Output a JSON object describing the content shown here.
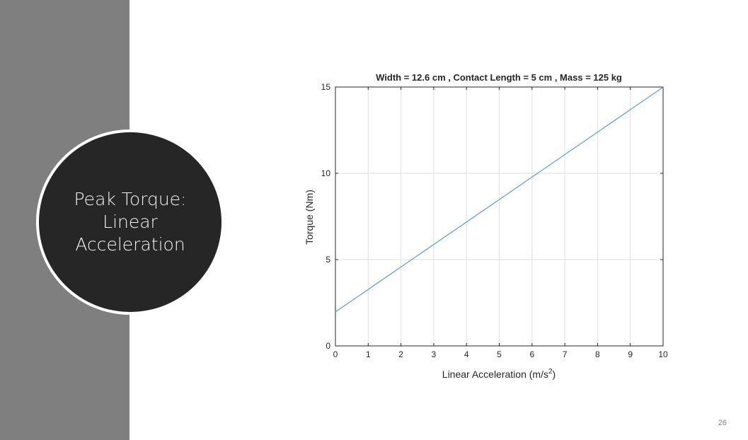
{
  "slide": {
    "title_lines": [
      "Peak Torque:",
      "Linear",
      "Acceleration"
    ],
    "page_number": "26"
  },
  "colors": {
    "sidebar": "#7f7f7f",
    "circle_fill": "#262626",
    "circle_ring": "#ffffff",
    "line": "#5b9bd5",
    "grid": "#dedede"
  },
  "chart_data": {
    "type": "line",
    "title": "Width =  12.6 cm , Contact Length =  5 cm , Mass =  125 kg",
    "xlabel": "Linear Acceleration (m/s",
    "xlabel_sup": "2",
    "xlabel_close": ")",
    "ylabel": "Torque (Nm)",
    "xlim": [
      0,
      10
    ],
    "ylim": [
      0,
      15
    ],
    "xticks": [
      "0",
      "1",
      "2",
      "3",
      "4",
      "5",
      "6",
      "7",
      "8",
      "9",
      "10"
    ],
    "yticks": [
      "0",
      "5",
      "10",
      "15"
    ],
    "grid": true,
    "series": [
      {
        "x": [
          0,
          10
        ],
        "y": [
          1.97,
          14.99
        ]
      }
    ]
  }
}
